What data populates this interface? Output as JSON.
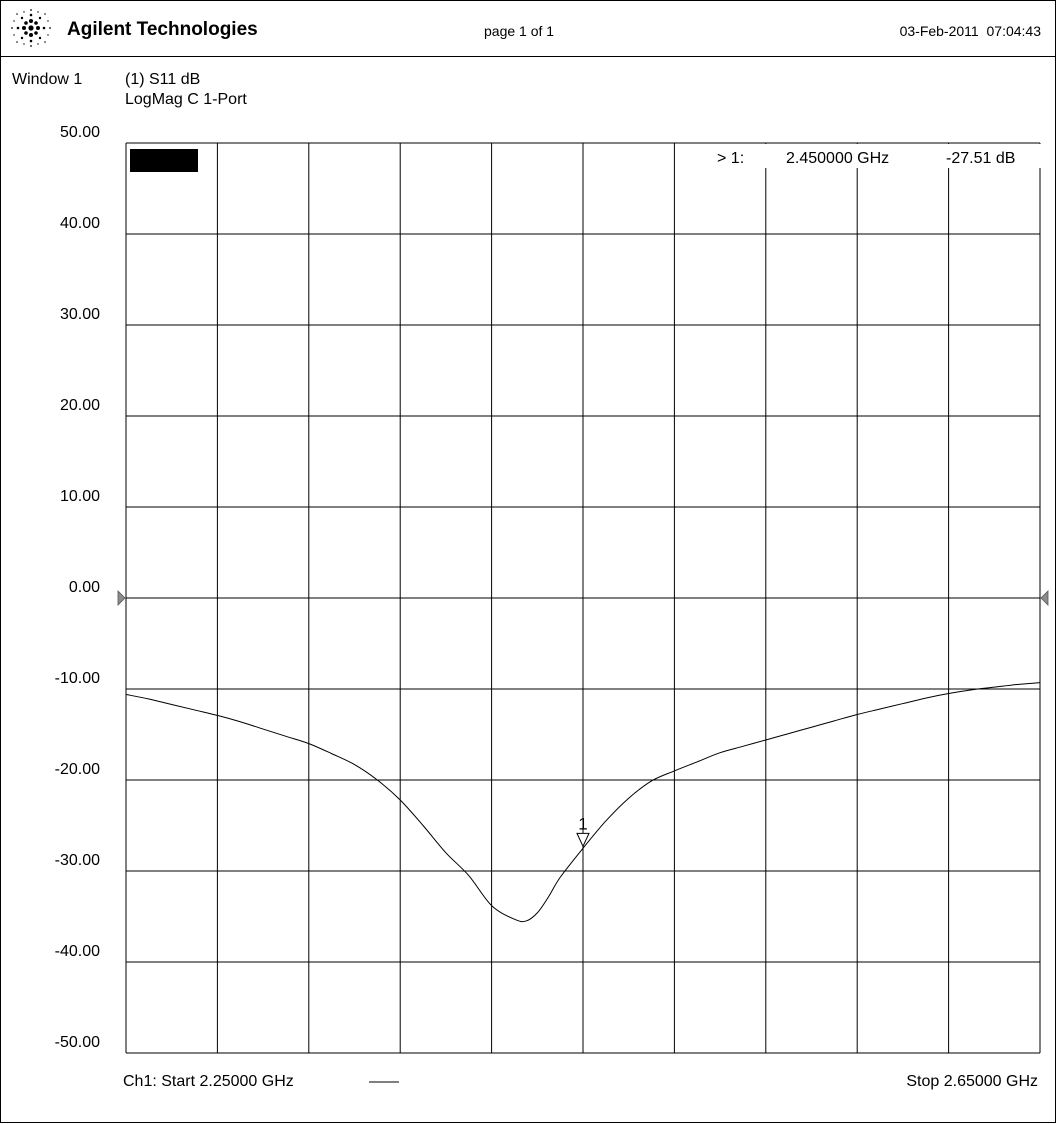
{
  "header": {
    "brand": "Agilent Technologies",
    "logo_icon": "agilent-spark-icon",
    "page_indicator": "page 1 of 1",
    "date": "03-Feb-2011",
    "time": "07:04:43"
  },
  "window": {
    "label": "Window 1",
    "trace_title": "(1) S11 dB",
    "trace_format": "LogMag C  1-Port"
  },
  "marker_readout": {
    "prefix": "> 1:",
    "frequency": "2.450000 GHz",
    "value": "-27.51 dB"
  },
  "footer": {
    "start": "Ch1: Start  2.25000 GHz",
    "stop": "Stop  2.65000 GHz"
  },
  "chart_data": {
    "type": "line",
    "title": "(1) S11 dB",
    "ylim": [
      -50,
      50
    ],
    "xlim": [
      2.25,
      2.65
    ],
    "x_unit": "GHz",
    "y_unit": "dB",
    "yticks": [
      "50.00",
      "40.00",
      "30.00",
      "20.00",
      "10.00",
      "0.00",
      "-10.00",
      "-20.00",
      "-30.00",
      "-40.00",
      "-50.00"
    ],
    "grid": true,
    "series": [
      {
        "color": "#000000",
        "x": [
          2.25,
          2.26,
          2.27,
          2.28,
          2.29,
          2.3,
          2.31,
          2.32,
          2.33,
          2.34,
          2.35,
          2.36,
          2.37,
          2.38,
          2.39,
          2.4,
          2.41,
          2.42,
          2.425,
          2.43,
          2.435,
          2.44,
          2.45,
          2.46,
          2.47,
          2.48,
          2.49,
          2.5,
          2.51,
          2.52,
          2.53,
          2.54,
          2.55,
          2.56,
          2.57,
          2.58,
          2.59,
          2.6,
          2.61,
          2.62,
          2.63,
          2.64,
          2.65
        ],
        "y": [
          -10.6,
          -11.1,
          -11.7,
          -12.3,
          -12.9,
          -13.6,
          -14.4,
          -15.2,
          -16.0,
          -17.1,
          -18.3,
          -20.0,
          -22.2,
          -25.0,
          -28.0,
          -30.5,
          -33.8,
          -35.3,
          -35.5,
          -34.6,
          -32.8,
          -30.7,
          -27.5,
          -24.5,
          -22.0,
          -20.1,
          -19.0,
          -18.0,
          -17.0,
          -16.3,
          -15.6,
          -14.9,
          -14.2,
          -13.5,
          -12.8,
          -12.2,
          -11.6,
          -11.0,
          -10.5,
          -10.1,
          -9.8,
          -9.5,
          -9.3
        ]
      }
    ],
    "markers": [
      {
        "label": "1",
        "x": 2.45,
        "y": -27.51
      }
    ],
    "reference_value": 0.0
  },
  "colors": {
    "line": "#000000",
    "grid": "#000000",
    "reference_arrow": "#8c8c8c"
  }
}
